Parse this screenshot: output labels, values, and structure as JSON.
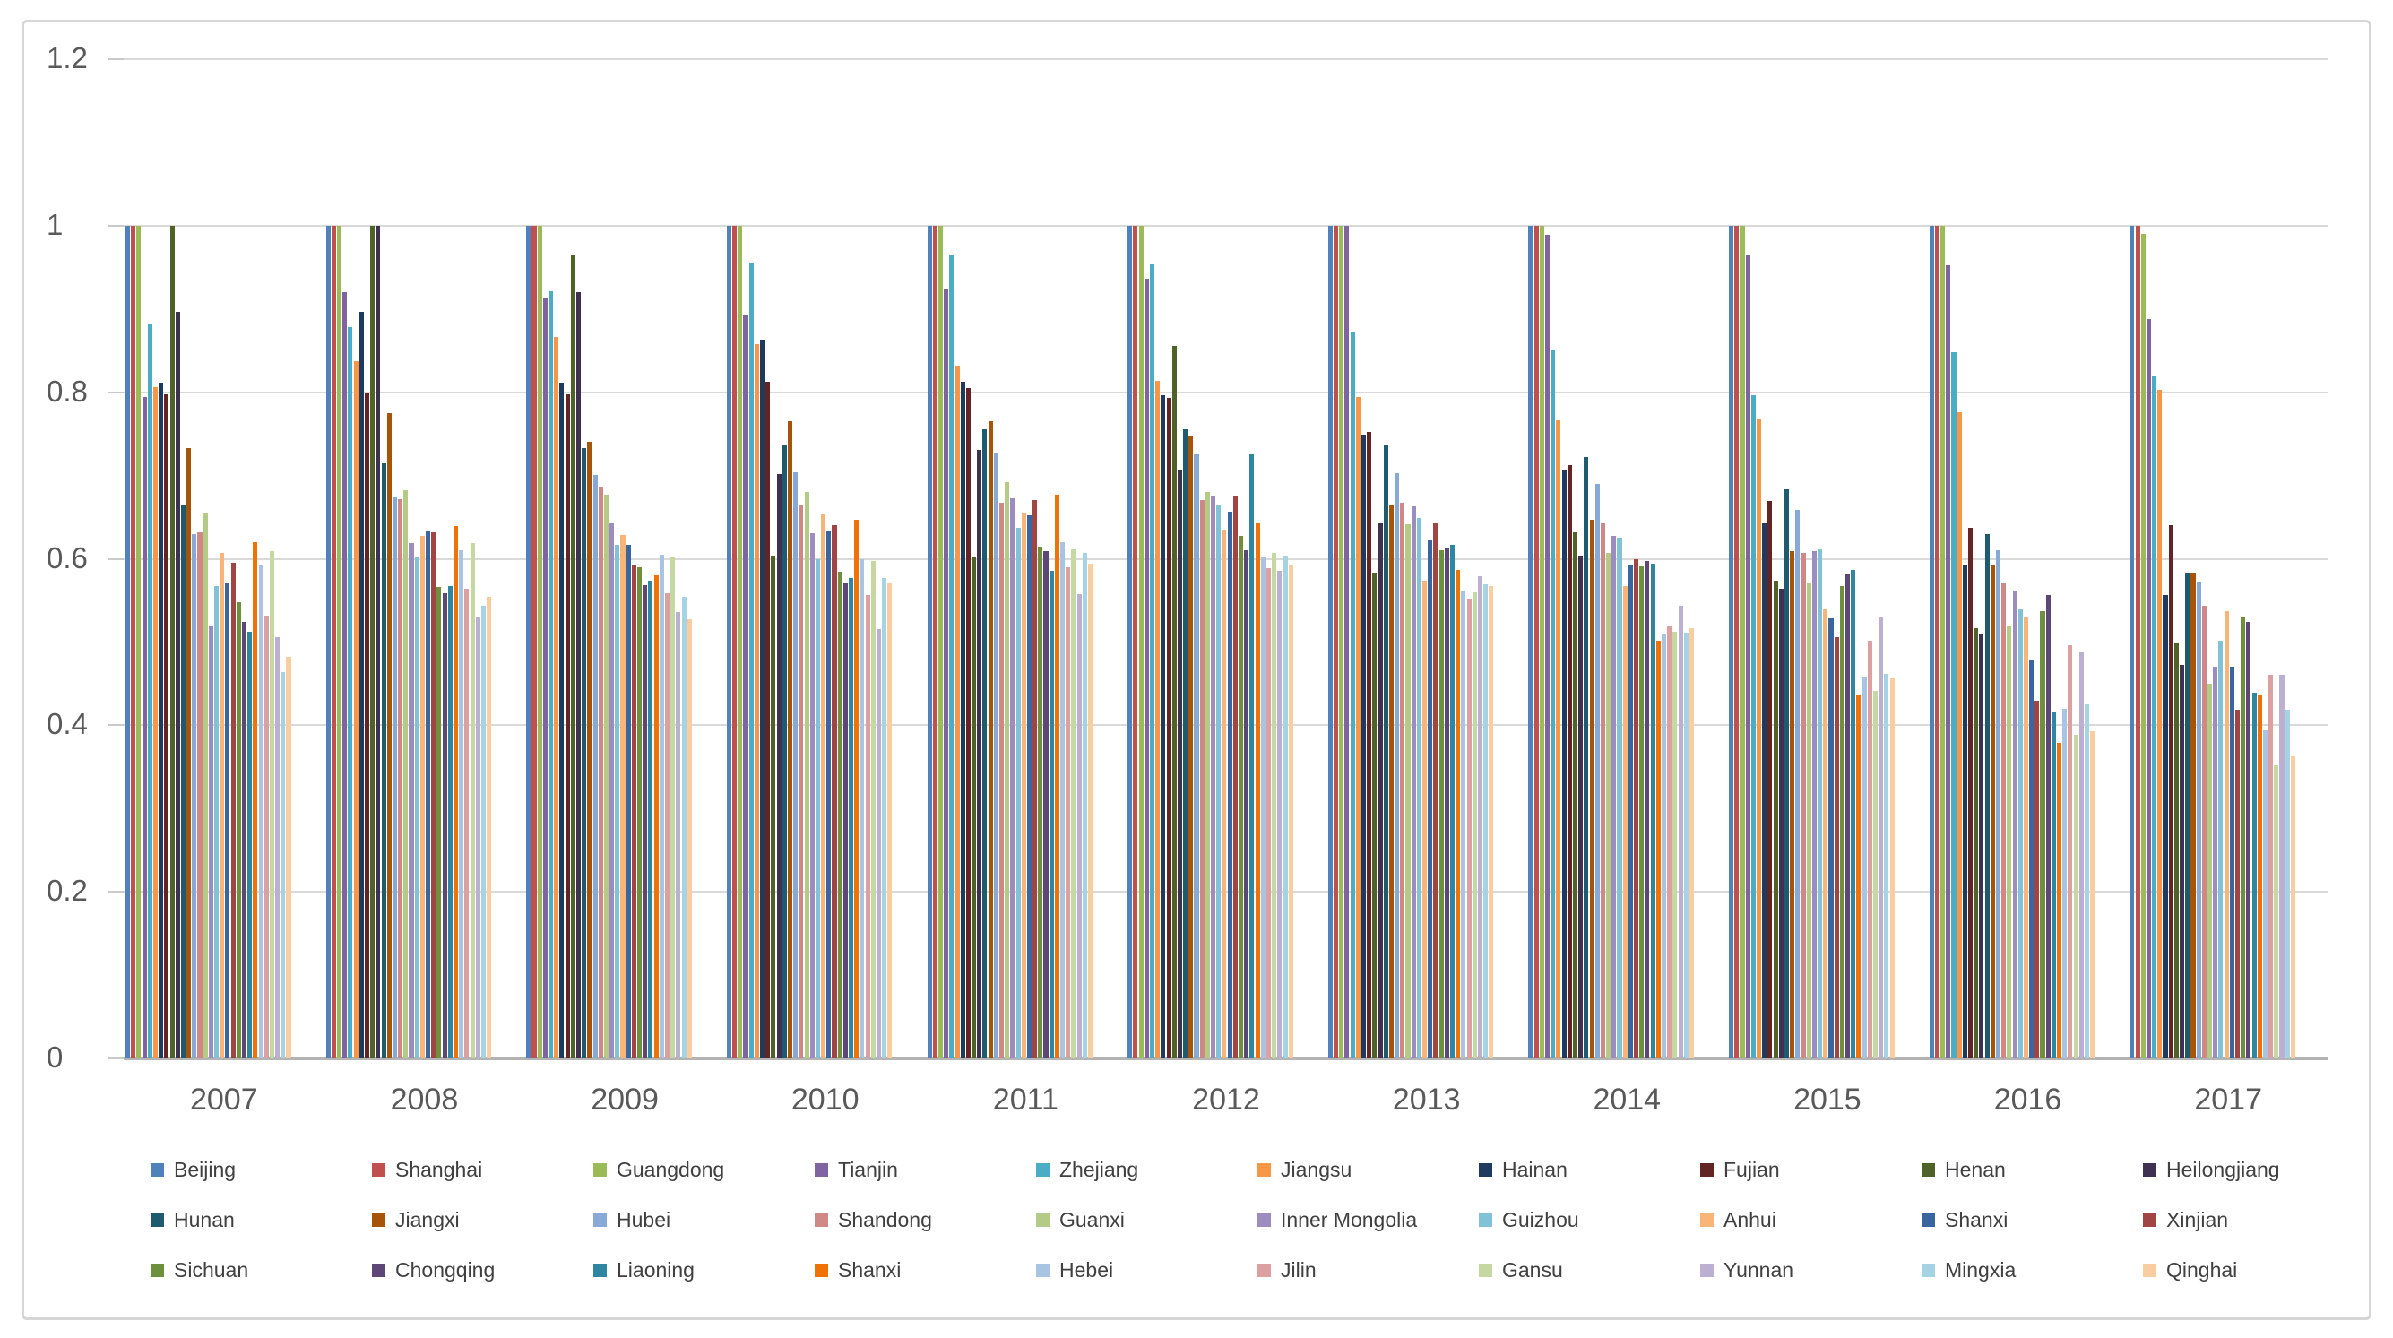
{
  "chart_data": {
    "type": "bar",
    "title": "",
    "xlabel": "",
    "ylabel": "",
    "categories": [
      "2007",
      "2008",
      "2009",
      "2010",
      "2011",
      "2012",
      "2013",
      "2014",
      "2015",
      "2016",
      "2017"
    ],
    "ylim": [
      0,
      1.2
    ],
    "yticks": [
      0,
      0.2,
      0.4,
      0.6,
      0.8,
      1,
      1.2
    ],
    "ytick_labels": [
      "0",
      "0.2",
      "0.4",
      "0.6",
      "0.8",
      "1",
      "1.2"
    ],
    "grid": "horizontal",
    "legend_position": "bottom",
    "legend_rows": 3,
    "legend_columns": 10,
    "series": [
      {
        "name": "Beijing",
        "color": "#4F81BD",
        "values": [
          1,
          1,
          1,
          1,
          1,
          1,
          1,
          1,
          1,
          1,
          1
        ]
      },
      {
        "name": "Shanghai",
        "color": "#C0504D",
        "values": [
          1,
          1,
          1,
          1,
          1,
          1,
          1,
          1,
          1,
          1,
          1
        ]
      },
      {
        "name": "Guangdong",
        "color": "#9BBB59",
        "values": [
          1,
          1,
          1,
          1,
          1,
          1,
          1,
          1,
          1,
          1,
          0.99
        ]
      },
      {
        "name": "Tianjin",
        "color": "#8064A2",
        "values": [
          0.794,
          0.92,
          0.913,
          0.893,
          0.923,
          0.936,
          1,
          0.989,
          0.965,
          0.953,
          0.888
        ]
      },
      {
        "name": "Zhejiang",
        "color": "#4BACC6",
        "values": [
          0.883,
          0.878,
          0.921,
          0.955,
          0.965,
          0.954,
          0.872,
          0.85,
          0.796,
          0.848,
          0.82
        ]
      },
      {
        "name": "Jiangsu",
        "color": "#F79646",
        "values": [
          0.806,
          0.837,
          0.866,
          0.858,
          0.832,
          0.814,
          0.794,
          0.766,
          0.768,
          0.776,
          0.803
        ]
      },
      {
        "name": "Hainan",
        "color": "#1E3A5F",
        "values": [
          0.812,
          0.897,
          0.812,
          0.863,
          0.813,
          0.796,
          0.749,
          0.707,
          0.643,
          0.593,
          0.556
        ]
      },
      {
        "name": "Fujian",
        "color": "#632523",
        "values": [
          0.797,
          0.8,
          0.798,
          0.813,
          0.805,
          0.793,
          0.752,
          0.712,
          0.669,
          0.637,
          0.64
        ]
      },
      {
        "name": "Henan",
        "color": "#4F6228",
        "values": [
          1,
          1,
          0.965,
          0.604,
          0.603,
          0.856,
          0.583,
          0.632,
          0.574,
          0.517,
          0.498
        ]
      },
      {
        "name": "Heilongjiang",
        "color": "#3F3151",
        "values": [
          0.897,
          1,
          0.92,
          0.702,
          0.731,
          0.707,
          0.643,
          0.604,
          0.564,
          0.51,
          0.472
        ]
      },
      {
        "name": "Hunan",
        "color": "#1F5B6E",
        "values": [
          0.665,
          0.715,
          0.733,
          0.737,
          0.755,
          0.756,
          0.737,
          0.722,
          0.683,
          0.63,
          0.583
        ]
      },
      {
        "name": "Jiangxi",
        "color": "#A6540A",
        "values": [
          0.733,
          0.775,
          0.74,
          0.765,
          0.765,
          0.748,
          0.665,
          0.647,
          0.609,
          0.592,
          0.583
        ]
      },
      {
        "name": "Hubei",
        "color": "#87A9D6",
        "values": [
          0.63,
          0.674,
          0.701,
          0.704,
          0.727,
          0.725,
          0.703,
          0.69,
          0.659,
          0.61,
          0.573
        ]
      },
      {
        "name": "Shandong",
        "color": "#D08886",
        "values": [
          0.632,
          0.672,
          0.687,
          0.665,
          0.667,
          0.67,
          0.667,
          0.643,
          0.607,
          0.57,
          0.543
        ]
      },
      {
        "name": "Guanxi",
        "color": "#B3CB85",
        "values": [
          0.655,
          0.682,
          0.677,
          0.68,
          0.692,
          0.68,
          0.641,
          0.607,
          0.57,
          0.52,
          0.45
        ]
      },
      {
        "name": "Inner Mongolia",
        "color": "#9C8CBF",
        "values": [
          0.519,
          0.619,
          0.643,
          0.631,
          0.673,
          0.675,
          0.663,
          0.627,
          0.609,
          0.562,
          0.47
        ]
      },
      {
        "name": "Guizhou",
        "color": "#81C2D6",
        "values": [
          0.567,
          0.603,
          0.617,
          0.6,
          0.637,
          0.665,
          0.649,
          0.625,
          0.611,
          0.539,
          0.502
        ]
      },
      {
        "name": "Anhui",
        "color": "#F9B477",
        "values": [
          0.607,
          0.627,
          0.629,
          0.653,
          0.655,
          0.635,
          0.574,
          0.567,
          0.539,
          0.53,
          0.537
        ]
      },
      {
        "name": "Shanxi",
        "color": "#3A66A0",
        "values": [
          0.572,
          0.633,
          0.617,
          0.634,
          0.652,
          0.657,
          0.623,
          0.592,
          0.528,
          0.479,
          0.47
        ]
      },
      {
        "name": "Xinjian",
        "color": "#A04543",
        "values": [
          0.595,
          0.632,
          0.592,
          0.64,
          0.671,
          0.675,
          0.643,
          0.599,
          0.506,
          0.429,
          0.419
        ]
      },
      {
        "name": "Sichuan",
        "color": "#6E8F3E",
        "values": [
          0.548,
          0.566,
          0.59,
          0.584,
          0.615,
          0.627,
          0.61,
          0.591,
          0.567,
          0.537,
          0.529
        ]
      },
      {
        "name": "Chongqing",
        "color": "#5C4777",
        "values": [
          0.524,
          0.559,
          0.568,
          0.571,
          0.609,
          0.61,
          0.612,
          0.597,
          0.581,
          0.556,
          0.524
        ]
      },
      {
        "name": "Liaoning",
        "color": "#2E86A0",
        "values": [
          0.512,
          0.567,
          0.574,
          0.577,
          0.585,
          0.725,
          0.617,
          0.594,
          0.587,
          0.416,
          0.439
        ]
      },
      {
        "name": "Shanxi",
        "color": "#F07207",
        "values": [
          0.62,
          0.639,
          0.58,
          0.647,
          0.677,
          0.643,
          0.587,
          0.502,
          0.436,
          0.379,
          0.436
        ]
      },
      {
        "name": "Hebei",
        "color": "#A9C3E2",
        "values": [
          0.592,
          0.61,
          0.605,
          0.599,
          0.62,
          0.602,
          0.562,
          0.509,
          0.459,
          0.42,
          0.394
        ]
      },
      {
        "name": "Jilin",
        "color": "#DCA0A0",
        "values": [
          0.532,
          0.564,
          0.559,
          0.556,
          0.59,
          0.589,
          0.552,
          0.52,
          0.502,
          0.496,
          0.461
        ]
      },
      {
        "name": "Gansu",
        "color": "#C6D8A2",
        "values": [
          0.609,
          0.619,
          0.602,
          0.597,
          0.611,
          0.607,
          0.56,
          0.512,
          0.441,
          0.389,
          0.352
        ]
      },
      {
        "name": "Yunnan",
        "color": "#BCB0D2",
        "values": [
          0.506,
          0.53,
          0.536,
          0.516,
          0.557,
          0.585,
          0.579,
          0.544,
          0.529,
          0.488,
          0.461
        ]
      },
      {
        "name": "Mingxia",
        "color": "#A5D3E3",
        "values": [
          0.464,
          0.544,
          0.554,
          0.577,
          0.607,
          0.604,
          0.569,
          0.511,
          0.462,
          0.426,
          0.419
        ]
      },
      {
        "name": "Qinghai",
        "color": "#FACDA0",
        "values": [
          0.482,
          0.554,
          0.527,
          0.57,
          0.594,
          0.593,
          0.567,
          0.517,
          0.457,
          0.393,
          0.363
        ]
      }
    ]
  },
  "colors": {
    "background": "#FFFFFF",
    "frame_border": "#D6D6D6",
    "gridline": "#D9D9D9",
    "axis_line": "#B3B3B3",
    "axis_label": "#595959",
    "legend_label": "#404040"
  }
}
